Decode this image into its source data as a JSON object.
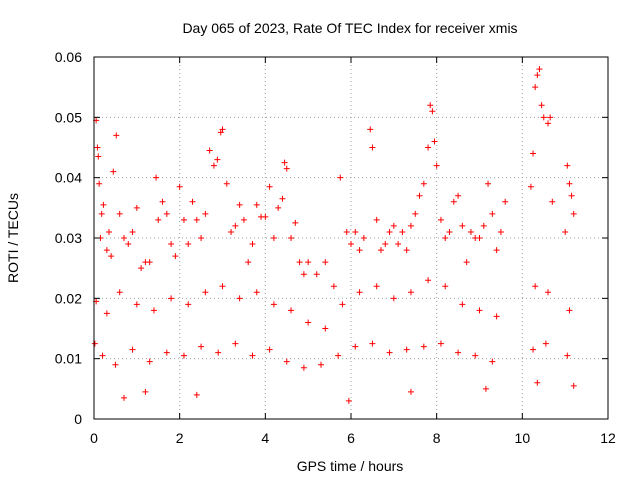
{
  "chart_data": {
    "type": "scatter",
    "title": "Day 065 of 2023, Rate Of TEC Index for receiver xmis",
    "xlabel": "GPS time / hours",
    "ylabel": "ROTI / TECUs",
    "xlim": [
      0,
      12
    ],
    "ylim": [
      0,
      0.06
    ],
    "xticks": [
      "0",
      "2",
      "4",
      "6",
      "8",
      "10",
      "12"
    ],
    "yticks": [
      "0",
      "0.01",
      "0.02",
      "0.03",
      "0.04",
      "0.05",
      "0.06"
    ],
    "grid": true,
    "marker": "+",
    "color": "#ff0000",
    "x_coverage": [
      0,
      11.2
    ],
    "data_gap_hours": [
      [
        9.6,
        10.15
      ],
      [
        10.75,
        11.0
      ]
    ],
    "points": [
      [
        0.02,
        0.0125
      ],
      [
        0.05,
        0.0495
      ],
      [
        0.08,
        0.045
      ],
      [
        0.1,
        0.0435
      ],
      [
        0.12,
        0.039
      ],
      [
        0.15,
        0.03
      ],
      [
        0.18,
        0.034
      ],
      [
        0.22,
        0.0355
      ],
      [
        0.3,
        0.028
      ],
      [
        0.35,
        0.031
      ],
      [
        0.4,
        0.027
      ],
      [
        0.45,
        0.041
      ],
      [
        0.52,
        0.047
      ],
      [
        0.6,
        0.034
      ],
      [
        0.7,
        0.03
      ],
      [
        0.8,
        0.029
      ],
      [
        0.9,
        0.031
      ],
      [
        1.0,
        0.035
      ],
      [
        1.1,
        0.025
      ],
      [
        1.2,
        0.026
      ],
      [
        1.3,
        0.026
      ],
      [
        1.45,
        0.04
      ],
      [
        1.5,
        0.033
      ],
      [
        1.6,
        0.036
      ],
      [
        1.7,
        0.034
      ],
      [
        1.8,
        0.029
      ],
      [
        1.9,
        0.027
      ],
      [
        2.0,
        0.0385
      ],
      [
        2.1,
        0.033
      ],
      [
        2.2,
        0.029
      ],
      [
        2.3,
        0.036
      ],
      [
        2.4,
        0.033
      ],
      [
        2.5,
        0.03
      ],
      [
        2.6,
        0.034
      ],
      [
        2.7,
        0.0445
      ],
      [
        2.8,
        0.042
      ],
      [
        2.88,
        0.043
      ],
      [
        2.96,
        0.0475
      ],
      [
        3.0,
        0.048
      ],
      [
        3.1,
        0.039
      ],
      [
        3.2,
        0.031
      ],
      [
        3.3,
        0.032
      ],
      [
        3.4,
        0.0355
      ],
      [
        3.5,
        0.033
      ],
      [
        3.6,
        0.026
      ],
      [
        3.7,
        0.029
      ],
      [
        3.8,
        0.0355
      ],
      [
        3.9,
        0.0335
      ],
      [
        4.0,
        0.0335
      ],
      [
        4.1,
        0.0385
      ],
      [
        4.2,
        0.03
      ],
      [
        4.3,
        0.035
      ],
      [
        4.4,
        0.0365
      ],
      [
        4.45,
        0.0425
      ],
      [
        4.5,
        0.0415
      ],
      [
        4.6,
        0.03
      ],
      [
        4.7,
        0.0325
      ],
      [
        4.8,
        0.026
      ],
      [
        4.9,
        0.024
      ],
      [
        5.0,
        0.026
      ],
      [
        5.2,
        0.024
      ],
      [
        5.4,
        0.026
      ],
      [
        5.6,
        0.022
      ],
      [
        5.75,
        0.04
      ],
      [
        5.9,
        0.031
      ],
      [
        6.0,
        0.029
      ],
      [
        6.1,
        0.031
      ],
      [
        6.2,
        0.028
      ],
      [
        6.3,
        0.03
      ],
      [
        6.45,
        0.048
      ],
      [
        6.5,
        0.045
      ],
      [
        6.6,
        0.033
      ],
      [
        6.7,
        0.028
      ],
      [
        6.8,
        0.029
      ],
      [
        6.9,
        0.031
      ],
      [
        7.0,
        0.032
      ],
      [
        7.1,
        0.029
      ],
      [
        7.2,
        0.031
      ],
      [
        7.3,
        0.028
      ],
      [
        7.4,
        0.032
      ],
      [
        7.5,
        0.034
      ],
      [
        7.6,
        0.037
      ],
      [
        7.7,
        0.039
      ],
      [
        7.8,
        0.045
      ],
      [
        7.85,
        0.052
      ],
      [
        7.9,
        0.051
      ],
      [
        7.95,
        0.046
      ],
      [
        8.0,
        0.042
      ],
      [
        8.1,
        0.033
      ],
      [
        8.2,
        0.03
      ],
      [
        8.3,
        0.031
      ],
      [
        8.4,
        0.036
      ],
      [
        8.5,
        0.037
      ],
      [
        8.6,
        0.032
      ],
      [
        8.7,
        0.026
      ],
      [
        8.8,
        0.031
      ],
      [
        8.9,
        0.03
      ],
      [
        9.0,
        0.03
      ],
      [
        9.1,
        0.032
      ],
      [
        9.2,
        0.039
      ],
      [
        9.3,
        0.034
      ],
      [
        9.4,
        0.028
      ],
      [
        9.5,
        0.031
      ],
      [
        9.6,
        0.036
      ],
      [
        10.2,
        0.0385
      ],
      [
        10.25,
        0.044
      ],
      [
        10.3,
        0.055
      ],
      [
        10.35,
        0.057
      ],
      [
        10.4,
        0.058
      ],
      [
        10.45,
        0.052
      ],
      [
        10.5,
        0.05
      ],
      [
        10.6,
        0.049
      ],
      [
        10.65,
        0.05
      ],
      [
        10.7,
        0.036
      ],
      [
        11.0,
        0.031
      ],
      [
        11.05,
        0.042
      ],
      [
        11.1,
        0.039
      ],
      [
        11.15,
        0.037
      ],
      [
        11.2,
        0.034
      ],
      [
        0.05,
        0.0195
      ],
      [
        0.3,
        0.0175
      ],
      [
        0.6,
        0.021
      ],
      [
        1.0,
        0.019
      ],
      [
        1.4,
        0.018
      ],
      [
        1.8,
        0.02
      ],
      [
        2.2,
        0.019
      ],
      [
        2.6,
        0.021
      ],
      [
        3.0,
        0.022
      ],
      [
        3.4,
        0.02
      ],
      [
        3.8,
        0.021
      ],
      [
        4.2,
        0.019
      ],
      [
        4.6,
        0.018
      ],
      [
        5.0,
        0.016
      ],
      [
        5.4,
        0.015
      ],
      [
        5.8,
        0.019
      ],
      [
        6.2,
        0.021
      ],
      [
        6.6,
        0.022
      ],
      [
        7.0,
        0.02
      ],
      [
        7.4,
        0.021
      ],
      [
        7.8,
        0.023
      ],
      [
        8.2,
        0.022
      ],
      [
        8.6,
        0.019
      ],
      [
        9.0,
        0.018
      ],
      [
        9.4,
        0.017
      ],
      [
        10.3,
        0.022
      ],
      [
        10.6,
        0.021
      ],
      [
        11.1,
        0.018
      ],
      [
        0.2,
        0.0105
      ],
      [
        0.5,
        0.009
      ],
      [
        0.9,
        0.0115
      ],
      [
        1.3,
        0.0095
      ],
      [
        1.7,
        0.011
      ],
      [
        2.1,
        0.0105
      ],
      [
        2.5,
        0.012
      ],
      [
        2.9,
        0.011
      ],
      [
        3.3,
        0.0125
      ],
      [
        3.7,
        0.0105
      ],
      [
        4.1,
        0.0115
      ],
      [
        4.5,
        0.0095
      ],
      [
        4.9,
        0.0085
      ],
      [
        5.3,
        0.009
      ],
      [
        5.7,
        0.0105
      ],
      [
        6.1,
        0.012
      ],
      [
        6.5,
        0.0125
      ],
      [
        6.9,
        0.011
      ],
      [
        7.3,
        0.0115
      ],
      [
        7.7,
        0.012
      ],
      [
        8.1,
        0.0125
      ],
      [
        8.5,
        0.011
      ],
      [
        8.9,
        0.0105
      ],
      [
        9.3,
        0.0095
      ],
      [
        10.25,
        0.0115
      ],
      [
        10.55,
        0.0125
      ],
      [
        11.05,
        0.0105
      ],
      [
        11.2,
        0.0055
      ],
      [
        0.7,
        0.0035
      ],
      [
        1.2,
        0.0045
      ],
      [
        2.4,
        0.004
      ],
      [
        5.95,
        0.003
      ],
      [
        7.4,
        0.0045
      ],
      [
        9.15,
        0.005
      ],
      [
        10.35,
        0.006
      ]
    ]
  }
}
